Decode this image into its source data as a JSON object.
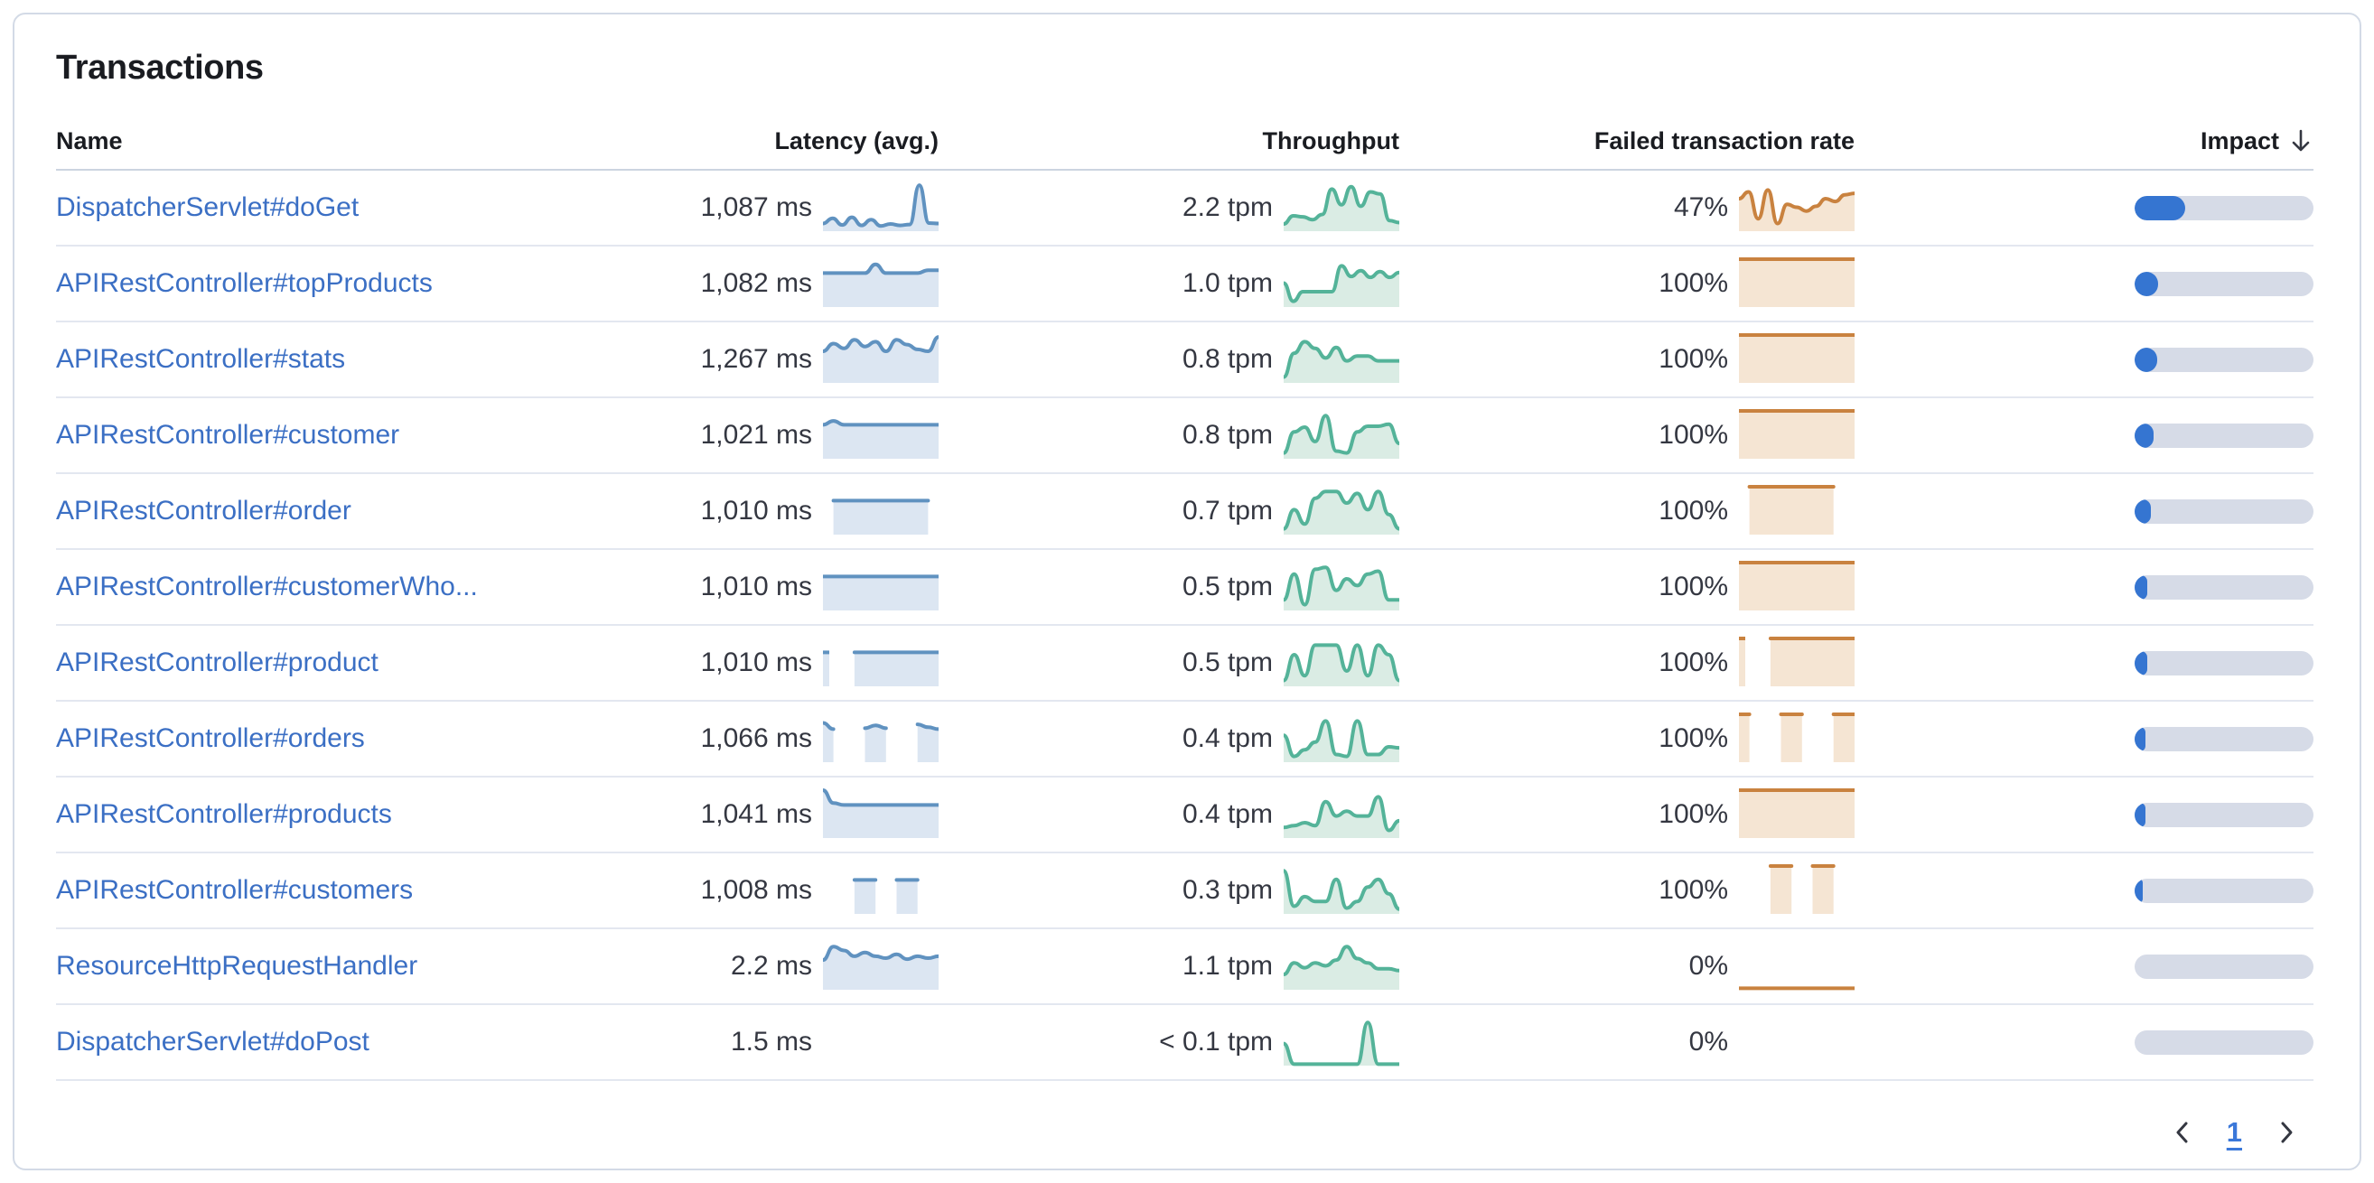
{
  "card": {
    "title": "Transactions"
  },
  "table": {
    "columns": [
      {
        "label": "Name"
      },
      {
        "label": "Latency (avg.)"
      },
      {
        "label": "Throughput"
      },
      {
        "label": "Failed transaction rate"
      },
      {
        "label": "Impact",
        "sort": "desc"
      }
    ],
    "rows": [
      {
        "name": "DispatcherServlet#doGet",
        "latency": "1,087 ms",
        "throughput": "2.2 tpm",
        "failed_rate": "47%",
        "impact_pct": 28.5,
        "latency_series": [
          1.6,
          2.7,
          1.3,
          2.9,
          1.2,
          2.4,
          1.1,
          1.5,
          1.2,
          1.4,
          9.6,
          1.7,
          1.6
        ],
        "throughput_series": [
          1.5,
          3.2,
          3.0,
          2.4,
          3.5,
          8.8,
          5.5,
          9.3,
          5.2,
          8.2,
          7.8,
          2.2,
          1.8
        ],
        "failed_series": [
          6.8,
          8.2,
          2.6,
          8.6,
          1.6,
          5.6,
          5.0,
          4.2,
          5.2,
          6.8,
          6.2,
          7.6,
          7.9
        ]
      },
      {
        "name": "APIRestController#topProducts",
        "latency": "1,082 ms",
        "throughput": "1.0 tpm",
        "failed_rate": "100%",
        "impact_pct": 13,
        "latency_series": [
          7.1,
          7.1,
          7.1,
          7.1,
          7.1,
          8.9,
          7.1,
          7.1,
          7.1,
          7.1,
          7.7,
          7.7
        ],
        "throughput_series": [
          5.0,
          1.2,
          3.2,
          3.2,
          3.2,
          3.2,
          8.6,
          6.4,
          7.6,
          6.2,
          7.4,
          6.2,
          7.2
        ],
        "failed_series": [
          10,
          10,
          10,
          10,
          10,
          10,
          10,
          10,
          10,
          10,
          10,
          10
        ]
      },
      {
        "name": "APIRestController#stats",
        "latency": "1,267 ms",
        "throughput": "0.8 tpm",
        "failed_rate": "100%",
        "impact_pct": 12.5,
        "latency_series": [
          6.6,
          8.2,
          7.2,
          9.0,
          7.6,
          8.6,
          6.6,
          9.0,
          8.0,
          7.0,
          6.6,
          9.6
        ],
        "throughput_series": [
          1.2,
          6.2,
          8.6,
          7.2,
          5.2,
          7.4,
          4.6,
          5.6,
          5.6,
          4.6,
          4.6,
          4.6
        ],
        "failed_series": [
          10,
          10,
          10,
          10,
          10,
          10,
          10,
          10,
          10,
          10,
          10,
          10
        ]
      },
      {
        "name": "APIRestController#customer",
        "latency": "1,021 ms",
        "throughput": "0.8 tpm",
        "failed_rate": "100%",
        "impact_pct": 10.5,
        "latency_series": [
          7.1,
          7.9,
          7.1,
          7.1,
          7.1,
          7.1,
          7.1,
          7.1,
          7.1,
          7.1,
          7.1,
          7.1
        ],
        "throughput_series": [
          1.2,
          5.6,
          6.6,
          3.6,
          9.0,
          1.6,
          1.2,
          5.6,
          6.8,
          6.8,
          7.2,
          3.2
        ],
        "failed_series": [
          10,
          10,
          10,
          10,
          10,
          10,
          10,
          10,
          10,
          10,
          10,
          10
        ]
      },
      {
        "name": "APIRestController#order",
        "latency": "1,010 ms",
        "throughput": "0.7 tpm",
        "failed_rate": "100%",
        "impact_pct": 9,
        "latency_series": [
          null,
          7.1,
          7.1,
          7.1,
          7.1,
          7.1,
          7.1,
          7.1,
          7.1,
          7.1,
          7.1,
          null
        ],
        "throughput_series": [
          1.2,
          5.2,
          2.2,
          7.6,
          9.0,
          9.0,
          6.6,
          8.6,
          5.2,
          9.0,
          4.2,
          1.2
        ],
        "failed_series": [
          null,
          10,
          10,
          10,
          10,
          10,
          10,
          10,
          10,
          10,
          null,
          null
        ]
      },
      {
        "name": "APIRestController#customerWho...",
        "latency": "1,010 ms",
        "throughput": "0.5 tpm",
        "failed_rate": "100%",
        "impact_pct": 7,
        "latency_series": [
          7.1,
          7.1,
          7.1,
          7.1,
          7.1,
          7.1,
          7.1,
          7.1,
          7.1,
          7.1,
          7.1,
          7.1
        ],
        "throughput_series": [
          2.2,
          7.6,
          1.2,
          8.6,
          9.0,
          4.2,
          6.6,
          5.2,
          7.6,
          8.2,
          2.2,
          2.2
        ],
        "failed_series": [
          10,
          10,
          10,
          10,
          10,
          10,
          10,
          10,
          10,
          10,
          10,
          10
        ]
      },
      {
        "name": "APIRestController#product",
        "latency": "1,010 ms",
        "throughput": "0.5 tpm",
        "failed_rate": "100%",
        "impact_pct": 7,
        "latency_series": [
          7.1,
          null,
          null,
          7.1,
          7.1,
          7.1,
          7.1,
          7.1,
          7.1,
          7.1,
          7.1,
          7.1
        ],
        "throughput_series": [
          1.2,
          6.6,
          2.2,
          8.6,
          8.6,
          8.6,
          3.2,
          8.6,
          2.2,
          8.6,
          6.6,
          1.2
        ],
        "failed_series": [
          10,
          null,
          null,
          10,
          10,
          10,
          10,
          10,
          10,
          10,
          10,
          10
        ]
      },
      {
        "name": "APIRestController#orders",
        "latency": "1,066 ms",
        "throughput": "0.4 tpm",
        "failed_rate": "100%",
        "impact_pct": 6,
        "latency_series": [
          8.2,
          6.9,
          null,
          null,
          7.1,
          7.7,
          7.1,
          null,
          null,
          7.9,
          7.3,
          6.9
        ],
        "throughput_series": [
          5.6,
          1.2,
          2.6,
          4.2,
          8.6,
          1.6,
          1.2,
          8.6,
          1.6,
          1.6,
          3.2,
          3.0
        ],
        "failed_series": [
          10,
          10,
          null,
          null,
          10,
          10,
          10,
          null,
          null,
          10,
          10,
          10
        ]
      },
      {
        "name": "APIRestController#products",
        "latency": "1,041 ms",
        "throughput": "0.4 tpm",
        "failed_rate": "100%",
        "impact_pct": 6,
        "latency_series": [
          10,
          7.3,
          6.9,
          6.9,
          6.9,
          6.9,
          6.9,
          6.9,
          6.9,
          6.9,
          6.9,
          6.9
        ],
        "throughput_series": [
          2.2,
          2.6,
          3.2,
          2.6,
          7.6,
          4.6,
          5.6,
          4.6,
          4.6,
          8.6,
          1.6,
          3.6
        ],
        "failed_series": [
          10,
          10,
          10,
          10,
          10,
          10,
          10,
          10,
          10,
          10,
          10,
          10
        ]
      },
      {
        "name": "APIRestController#customers",
        "latency": "1,008 ms",
        "throughput": "0.3 tpm",
        "failed_rate": "100%",
        "impact_pct": 4.5,
        "latency_series": [
          null,
          null,
          null,
          7.1,
          7.1,
          7.1,
          null,
          7.1,
          7.1,
          7.1,
          null,
          null
        ],
        "throughput_series": [
          9.0,
          1.6,
          3.6,
          2.6,
          2.6,
          7.2,
          1.2,
          2.6,
          5.6,
          7.2,
          4.2,
          1.0
        ],
        "failed_series": [
          null,
          null,
          null,
          10,
          10,
          10,
          null,
          10,
          10,
          10,
          null,
          null
        ]
      },
      {
        "name": "ResourceHttpRequestHandler",
        "latency": "2.2 ms",
        "throughput": "1.1 tpm",
        "failed_rate": "0%",
        "impact_pct": 0,
        "latency_series": [
          6.2,
          9.0,
          8.2,
          7.0,
          7.8,
          7.0,
          6.6,
          7.4,
          6.4,
          7.0,
          6.6,
          7.0
        ],
        "throughput_series": [
          3.2,
          5.6,
          4.6,
          5.6,
          5.0,
          6.2,
          9.0,
          6.5,
          5.6,
          4.4,
          4.4,
          4.0
        ],
        "failed_series": [
          0.3,
          0.3,
          0.3,
          0.3,
          0.3,
          0.3,
          0.3,
          0.3,
          0.3,
          0.3,
          0.3,
          0.3
        ]
      },
      {
        "name": "DispatcherServlet#doPost",
        "latency": "1.5 ms",
        "throughput": "< 0.1 tpm",
        "failed_rate": "0%",
        "impact_pct": 0,
        "latency_series": null,
        "throughput_series": [
          4.6,
          0.3,
          0.3,
          0.3,
          0.3,
          0.3,
          0.3,
          0.3,
          9.0,
          0.3,
          0.3,
          0.3
        ],
        "failed_series": null
      }
    ]
  },
  "pagination": {
    "prev_icon": "chevron-left",
    "page": "1",
    "next_icon": "chevron-right"
  },
  "colors": {
    "link": "#3b6fc4",
    "latency_line": "#6092c0",
    "latency_fill": "#dce6f2",
    "throughput_line": "#54b399",
    "throughput_fill": "#daece4",
    "failed_line": "#c9823f",
    "failed_fill": "#f5e5d3",
    "impact_fill": "#3575d1",
    "impact_track": "#d6dbe7"
  }
}
